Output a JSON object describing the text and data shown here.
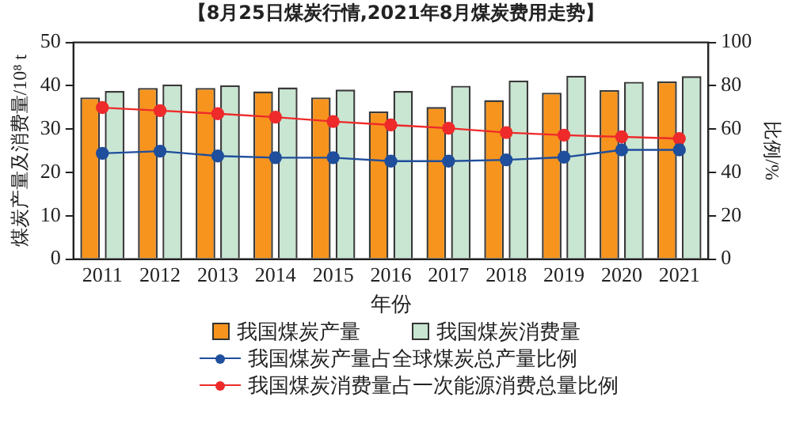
{
  "chart_data": {
    "type": "bar",
    "title": "【8月25日煤炭行情,2021年8月煤炭费用走势】",
    "xlabel": "年份",
    "ylabel": "煤炭产量及消费量/10⁸ t",
    "y2label": "比例/%",
    "categories": [
      "2011",
      "2012",
      "2013",
      "2014",
      "2015",
      "2016",
      "2017",
      "2018",
      "2019",
      "2020",
      "2021"
    ],
    "series": [
      {
        "name": "我国煤炭产量",
        "color": "#f7941d",
        "values": [
          37.3,
          39.5,
          39.5,
          38.7,
          37.3,
          34.1,
          35.1,
          36.7,
          38.4,
          39.0,
          41.0
        ]
      },
      {
        "name": "我国煤炭消费量",
        "color": "#c8e6d2",
        "values": [
          38.8,
          40.3,
          40.1,
          39.6,
          39.1,
          38.8,
          40.0,
          41.2,
          42.3,
          40.9,
          42.2
        ]
      },
      {
        "name": "我国煤炭产量占全球煤炭总产量比例",
        "type": "line",
        "axis": "y2",
        "color": "#1f4e9c",
        "values": [
          48.8,
          49.8,
          47.6,
          46.8,
          46.8,
          45.2,
          45.2,
          45.8,
          47.0,
          50.4,
          50.4
        ]
      },
      {
        "name": "我国煤炭消费量占一次能源消费总量比例",
        "type": "line",
        "axis": "y2",
        "color": "#ee2a2a",
        "values": [
          69.9,
          68.5,
          67.1,
          65.5,
          63.5,
          61.9,
          60.4,
          58.4,
          57.2,
          56.4,
          55.6
        ]
      }
    ],
    "ylim": [
      0,
      50
    ],
    "yticks": [
      0,
      10,
      20,
      30,
      40,
      50
    ],
    "y2lim": [
      0,
      100
    ],
    "y2ticks": [
      0,
      20,
      40,
      60,
      80,
      100
    ],
    "grid": false,
    "legend": "bottom",
    "marker": "circle",
    "line_style": "solid"
  }
}
